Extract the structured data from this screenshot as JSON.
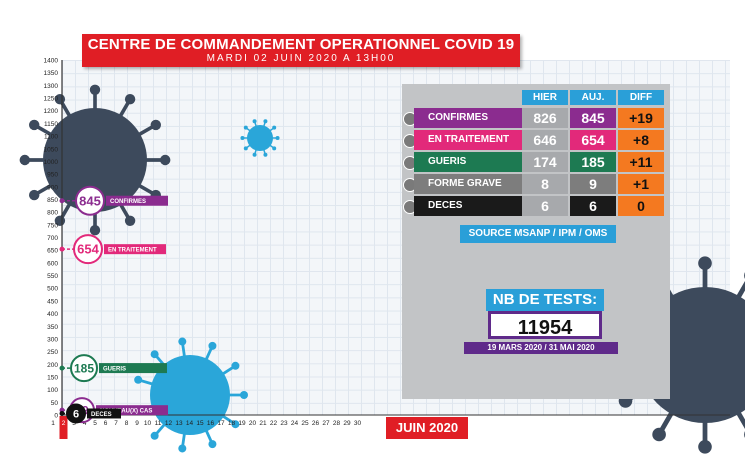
{
  "header": {
    "title": "CENTRE DE COMMANDEMENT OPERATIONNEL COVID 19",
    "subtitle": "MARDI 02 JUIN 2020 A 13H00"
  },
  "table": {
    "columns": [
      "HIER",
      "AUJ.",
      "DIFF"
    ],
    "rows": [
      {
        "label": "CONFIRMES",
        "hier": "826",
        "auj": "845",
        "diff": "+19",
        "color": "#8b2c8f"
      },
      {
        "label": "EN TRAITEMENT",
        "hier": "646",
        "auj": "654",
        "diff": "+8",
        "color": "#e2297a"
      },
      {
        "label": "GUERIS",
        "hier": "174",
        "auj": "185",
        "diff": "+11",
        "color": "#1d7a52"
      },
      {
        "label": "FORME GRAVE",
        "hier": "8",
        "auj": "9",
        "diff": "+1",
        "color": "#7d7d7d"
      },
      {
        "label": "DECES",
        "hier": "6",
        "auj": "6",
        "diff": "0",
        "color": "#1a1a1a"
      }
    ],
    "source": "SOURCE MSANP / IPM / OMS"
  },
  "tests": {
    "label": "NB DE TESTS:",
    "value": "11954",
    "period": "19 MARS 2020 / 31 MAI 2020"
  },
  "month_label": "JUIN 2020",
  "chart_data": {
    "type": "line",
    "x_ticks": [
      "1",
      "2",
      "3",
      "4",
      "5",
      "6",
      "7",
      "8",
      "9",
      "10",
      "11",
      "12",
      "13",
      "14",
      "15",
      "16",
      "17",
      "18",
      "19",
      "20",
      "21",
      "22",
      "23",
      "24",
      "25",
      "26",
      "27",
      "28",
      "29",
      "30"
    ],
    "y_ticks": [
      "0",
      "50",
      "100",
      "150",
      "200",
      "250",
      "300",
      "350",
      "400",
      "450",
      "500",
      "550",
      "600",
      "650",
      "700",
      "750",
      "800",
      "850",
      "900",
      "950",
      "1000",
      "1050",
      "1100",
      "1150",
      "1200",
      "1250",
      "1300",
      "1350",
      "1400"
    ],
    "ylim": [
      0,
      1400
    ],
    "current_day": 2,
    "series": [
      {
        "name": "CONFIRMES",
        "value": 845,
        "value_label": "845",
        "color": "#8b2c8f"
      },
      {
        "name": "EN TRAITEMENT",
        "value": 654,
        "value_label": "654",
        "color": "#e2297a"
      },
      {
        "name": "GUERIS",
        "value": 185,
        "value_label": "185",
        "color": "#1d7a52"
      },
      {
        "name": "NOUVEAU(X) CAS",
        "value": 19,
        "value_label": "19",
        "color": "#8b2c8f"
      },
      {
        "name": "DECES",
        "value": 6,
        "value_label": "6",
        "color": "#111111"
      }
    ]
  }
}
